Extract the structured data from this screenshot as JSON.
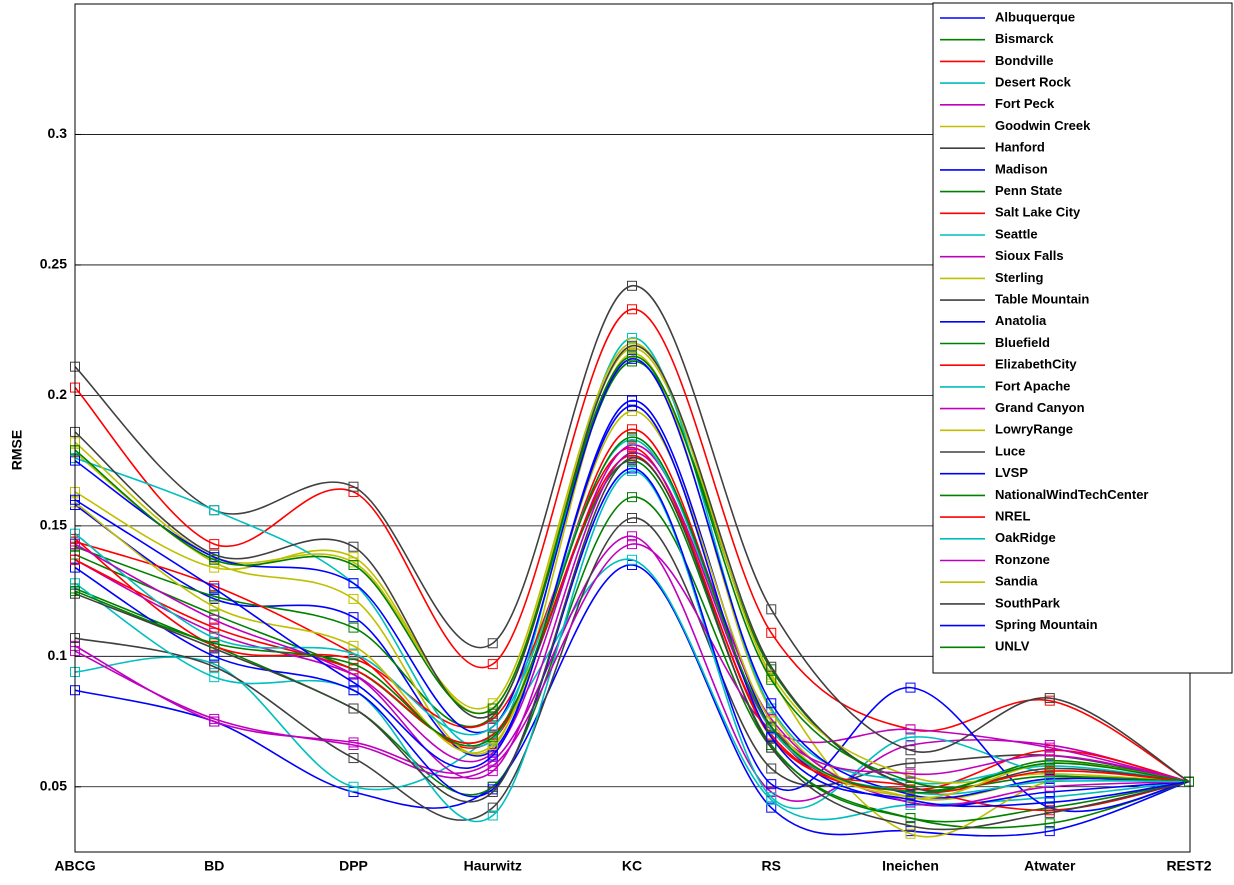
{
  "chart_data": {
    "type": "line",
    "y_label": "RMSE",
    "categories": [
      "ABCG",
      "BD",
      "DPP",
      "Haurwitz",
      "KC",
      "RS",
      "Ineichen",
      "Atwater",
      "REST2"
    ],
    "ylim": [
      0.025,
      0.35
    ],
    "yticks": [
      0.05,
      0.1,
      0.15,
      0.2,
      0.25,
      0.3
    ],
    "grid": true,
    "legend": "upper right",
    "series": [
      {
        "name": "Albuquerque",
        "color": "#0000ff",
        "values": [
          0.087,
          0.075,
          0.048,
          0.05,
          0.135,
          0.042,
          0.033,
          0.033,
          0.052
        ]
      },
      {
        "name": "Bismarck",
        "color": "#008000",
        "values": [
          0.126,
          0.104,
          0.08,
          0.05,
          0.161,
          0.065,
          0.038,
          0.036,
          0.052
        ]
      },
      {
        "name": "Bondville",
        "color": "#ff0000",
        "values": [
          0.203,
          0.143,
          0.163,
          0.097,
          0.233,
          0.109,
          0.072,
          0.083,
          0.052
        ]
      },
      {
        "name": "Desert Rock",
        "color": "#00bfbf",
        "values": [
          0.094,
          0.097,
          0.05,
          0.07,
          0.137,
          0.045,
          0.043,
          0.046,
          0.052
        ]
      },
      {
        "name": "Fort Peck",
        "color": "#bf00bf",
        "values": [
          0.104,
          0.075,
          0.067,
          0.06,
          0.146,
          0.048,
          0.066,
          0.066,
          0.052
        ]
      },
      {
        "name": "Goodwin Creek",
        "color": "#bfbf00",
        "values": [
          0.163,
          0.134,
          0.138,
          0.08,
          0.218,
          0.092,
          0.032,
          0.052,
          0.052
        ]
      },
      {
        "name": "Hanford",
        "color": "#404040",
        "values": [
          0.107,
          0.096,
          0.061,
          0.042,
          0.153,
          0.057,
          0.059,
          0.062,
          0.052
        ]
      },
      {
        "name": "Madison",
        "color": "#0000ff",
        "values": [
          0.158,
          0.122,
          0.115,
          0.064,
          0.198,
          0.073,
          0.044,
          0.048,
          0.052
        ]
      },
      {
        "name": "Penn State",
        "color": "#008000",
        "values": [
          0.142,
          0.123,
          0.111,
          0.077,
          0.213,
          0.095,
          0.05,
          0.06,
          0.052
        ]
      },
      {
        "name": "Salt Lake City",
        "color": "#ff0000",
        "values": [
          0.144,
          0.127,
          0.101,
          0.068,
          0.187,
          0.072,
          0.049,
          0.064,
          0.052
        ]
      },
      {
        "name": "Seattle",
        "color": "#00bfbf",
        "values": [
          0.128,
          0.092,
          0.087,
          0.039,
          0.171,
          0.046,
          0.069,
          0.055,
          0.052
        ]
      },
      {
        "name": "Sioux Falls",
        "color": "#bf00bf",
        "values": [
          0.102,
          0.076,
          0.066,
          0.058,
          0.143,
          0.072,
          0.072,
          0.065,
          0.052
        ]
      },
      {
        "name": "Sterling",
        "color": "#bfbf00",
        "values": [
          0.178,
          0.136,
          0.122,
          0.065,
          0.216,
          0.079,
          0.046,
          0.053,
          0.052
        ]
      },
      {
        "name": "Table Mountain",
        "color": "#404040",
        "values": [
          0.211,
          0.156,
          0.165,
          0.105,
          0.242,
          0.118,
          0.064,
          0.084,
          0.052
        ]
      },
      {
        "name": "Anatolia",
        "color": "#0000ff",
        "values": [
          0.134,
          0.1,
          0.087,
          0.049,
          0.172,
          0.051,
          0.088,
          0.042,
          0.052
        ]
      },
      {
        "name": "Bluefield",
        "color": "#008000",
        "values": [
          0.139,
          0.116,
          0.095,
          0.07,
          0.175,
          0.066,
          0.038,
          0.042,
          0.052
        ]
      },
      {
        "name": "ElizabethCity",
        "color": "#ff0000",
        "values": [
          0.145,
          0.104,
          0.099,
          0.076,
          0.18,
          0.069,
          0.05,
          0.041,
          0.052
        ]
      },
      {
        "name": "Fort Apache",
        "color": "#00bfbf",
        "values": [
          0.176,
          0.156,
          0.128,
          0.068,
          0.222,
          0.08,
          0.052,
          0.058,
          0.052
        ]
      },
      {
        "name": "Grand Canyon",
        "color": "#bf00bf",
        "values": [
          0.137,
          0.109,
          0.093,
          0.063,
          0.181,
          0.076,
          0.044,
          0.05,
          0.052
        ]
      },
      {
        "name": "LowryRange",
        "color": "#bfbf00",
        "values": [
          0.182,
          0.138,
          0.136,
          0.082,
          0.22,
          0.093,
          0.054,
          0.055,
          0.052
        ]
      },
      {
        "name": "Luce",
        "color": "#404040",
        "values": [
          0.186,
          0.139,
          0.142,
          0.078,
          0.219,
          0.096,
          0.05,
          0.057,
          0.052
        ]
      },
      {
        "name": "LVSP",
        "color": "#0000ff",
        "values": [
          0.175,
          0.138,
          0.128,
          0.073,
          0.214,
          0.082,
          0.047,
          0.053,
          0.052
        ]
      },
      {
        "name": "NationalWindTechCenter",
        "color": "#008000",
        "values": [
          0.179,
          0.137,
          0.135,
          0.08,
          0.215,
          0.091,
          0.052,
          0.054,
          0.052
        ]
      },
      {
        "name": "NREL",
        "color": "#ff0000",
        "values": [
          0.137,
          0.111,
          0.095,
          0.07,
          0.177,
          0.07,
          0.048,
          0.056,
          0.052
        ]
      },
      {
        "name": "OakRidge",
        "color": "#00bfbf",
        "values": [
          0.147,
          0.107,
          0.101,
          0.073,
          0.183,
          0.072,
          0.048,
          0.052,
          0.052
        ]
      },
      {
        "name": "Ronzone",
        "color": "#bf00bf",
        "values": [
          0.143,
          0.114,
          0.093,
          0.056,
          0.178,
          0.073,
          0.055,
          0.062,
          0.052
        ]
      },
      {
        "name": "Sandia",
        "color": "#bfbf00",
        "values": [
          0.159,
          0.119,
          0.104,
          0.066,
          0.194,
          0.075,
          0.046,
          0.059,
          0.052
        ]
      },
      {
        "name": "SouthPark",
        "color": "#404040",
        "values": [
          0.124,
          0.103,
          0.08,
          0.048,
          0.176,
          0.065,
          0.035,
          0.04,
          0.052
        ]
      },
      {
        "name": "Spring Mountain",
        "color": "#0000ff",
        "values": [
          0.16,
          0.126,
          0.09,
          0.062,
          0.196,
          0.069,
          0.045,
          0.044,
          0.052
        ]
      },
      {
        "name": "UNLV",
        "color": "#008000",
        "values": [
          0.125,
          0.105,
          0.097,
          0.069,
          0.184,
          0.073,
          0.048,
          0.059,
          0.052
        ]
      }
    ]
  }
}
